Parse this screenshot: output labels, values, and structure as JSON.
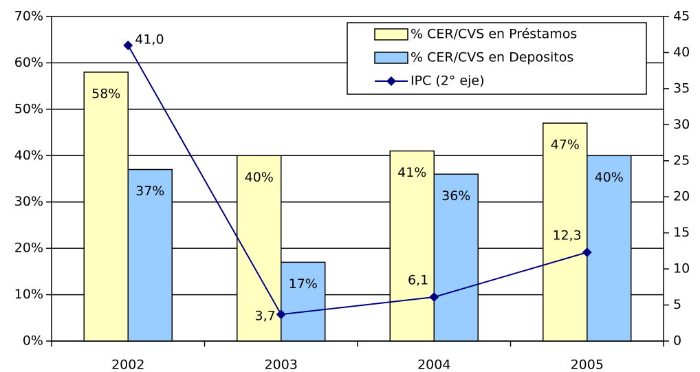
{
  "chart_data": {
    "type": "bar-line",
    "categories": [
      "2002",
      "2003",
      "2004",
      "2005"
    ],
    "series": [
      {
        "name": "% CER/CVS en Préstamos",
        "type": "bar",
        "color": "#ffffc0",
        "values": [
          58,
          40,
          41,
          47
        ],
        "value_labels": [
          "58%",
          "40%",
          "41%",
          "47%"
        ]
      },
      {
        "name": "% CER/CVS en Depositos",
        "type": "bar",
        "color": "#99ccff",
        "values": [
          37,
          17,
          36,
          40
        ],
        "value_labels": [
          "37%",
          "17%",
          "36%",
          "40%"
        ]
      },
      {
        "name": "IPC (2° eje)",
        "type": "line",
        "axis": "y2",
        "color": "#000080",
        "values": [
          41.0,
          3.7,
          6.1,
          12.3
        ],
        "value_labels": [
          "41,0",
          "3,7",
          "6,1",
          "12,3"
        ]
      }
    ],
    "ylim": [
      0,
      70
    ],
    "yticks": [
      {
        "value": 0,
        "label": "0%"
      },
      {
        "value": 10,
        "label": "10%"
      },
      {
        "value": 20,
        "label": "20%"
      },
      {
        "value": 30,
        "label": "30%"
      },
      {
        "value": 40,
        "label": "40%"
      },
      {
        "value": 50,
        "label": "50%"
      },
      {
        "value": 60,
        "label": "60%"
      },
      {
        "value": 70,
        "label": "70%"
      }
    ],
    "y2lim": [
      0,
      45
    ],
    "y2ticks": [
      0,
      5,
      10,
      15,
      20,
      25,
      30,
      35,
      40,
      45
    ],
    "grid": true,
    "legend": "top-right"
  }
}
